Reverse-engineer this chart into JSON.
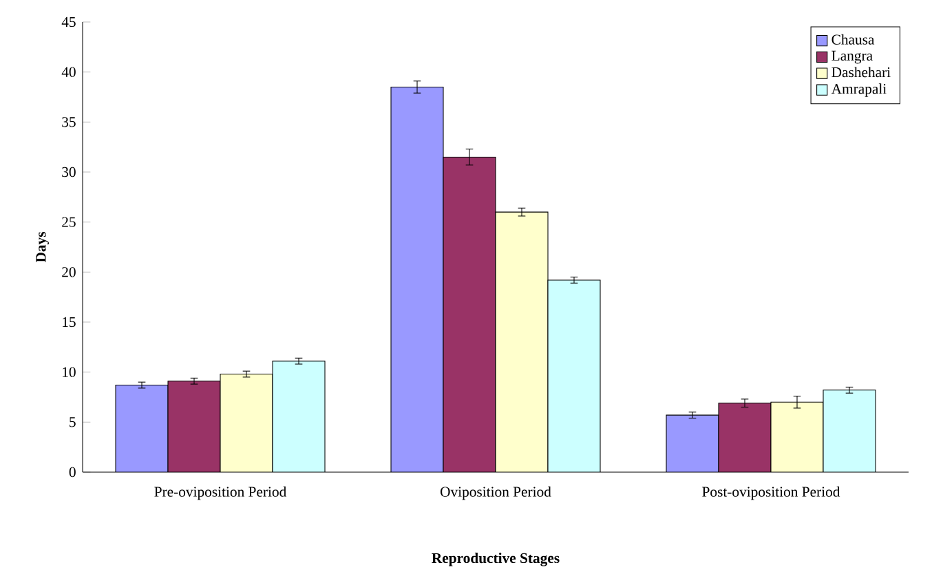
{
  "chart_data": {
    "type": "bar",
    "xlabel": "Reproductive Stages",
    "ylabel": "Days",
    "categories": [
      "Pre-oviposition Period",
      "Oviposition Period",
      "Post-oviposition Period"
    ],
    "series": [
      {
        "name": "Chausa",
        "color": "#9999ff",
        "values": [
          8.7,
          38.5,
          5.7
        ],
        "errors": [
          0.3,
          0.6,
          0.3
        ]
      },
      {
        "name": "Langra",
        "color": "#993366",
        "values": [
          9.1,
          31.5,
          6.9
        ],
        "errors": [
          0.3,
          0.8,
          0.4
        ]
      },
      {
        "name": "Dashehari",
        "color": "#ffffcc",
        "values": [
          9.8,
          26.0,
          7.0
        ],
        "errors": [
          0.3,
          0.4,
          0.6
        ]
      },
      {
        "name": "Amrapali",
        "color": "#ccffff",
        "values": [
          11.1,
          19.2,
          8.2
        ],
        "errors": [
          0.3,
          0.3,
          0.3
        ]
      }
    ],
    "ylim": [
      0,
      45
    ],
    "yticks": [
      0,
      5,
      10,
      15,
      20,
      25,
      30,
      35,
      40,
      45
    ],
    "grid": false,
    "legend": "top right"
  }
}
